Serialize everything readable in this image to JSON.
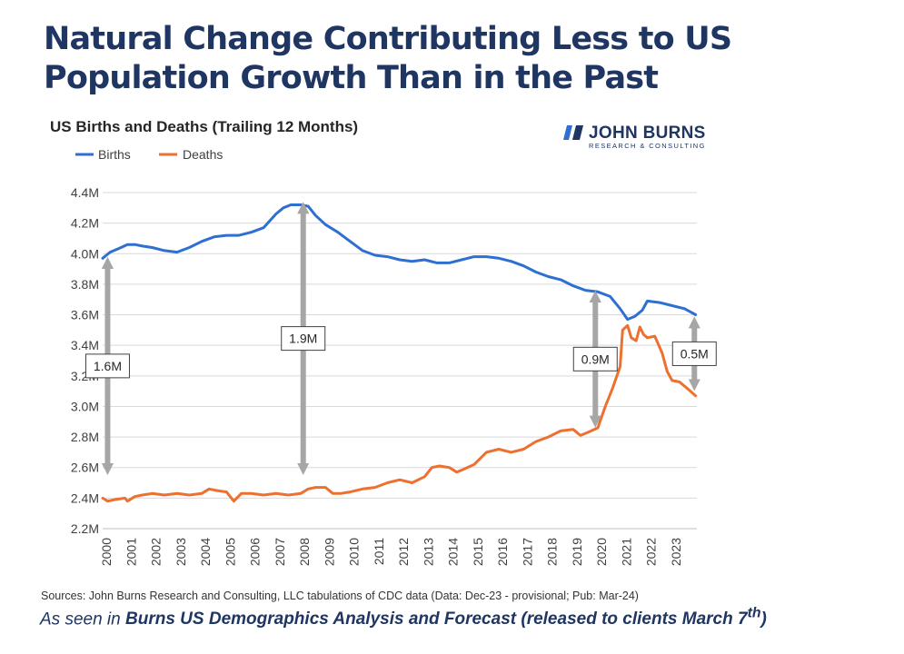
{
  "page": {
    "title_line1": "Natural Change Contributing Less to US",
    "title_line2": "Population Growth Than in the Past"
  },
  "logo": {
    "name": "JOHN BURNS",
    "subtitle": "RESEARCH & CONSULTING"
  },
  "footer": {
    "sources": "Sources: John Burns Research and Consulting, LLC tabulations of CDC data (Data: Dec-23 - provisional; Pub: Mar-24)",
    "seen_prefix": "As seen in ",
    "seen_bold": "Burns US Demographics Analysis and Forecast (released to clients March 7",
    "seen_sup": "th",
    "seen_suffix": ")"
  },
  "colors": {
    "title": "#1f3562",
    "births": "#2e6fd1",
    "deaths": "#ed7030",
    "arrow": "#a6a6a6",
    "grid": "#d9d9d9"
  },
  "chart_data": {
    "type": "line",
    "title": "US Births and Deaths (Trailing 12 Months)",
    "xlabel": "",
    "ylabel": "",
    "ylim": [
      2.2,
      4.4
    ],
    "yticks": [
      2.2,
      2.4,
      2.6,
      2.8,
      3.0,
      3.2,
      3.4,
      3.6,
      3.8,
      4.0,
      4.2,
      4.4
    ],
    "ytick_labels": [
      "2.2M",
      "2.4M",
      "2.6M",
      "2.8M",
      "3.0M",
      "3.2M",
      "3.4M",
      "3.6M",
      "3.8M",
      "4.0M",
      "4.2M",
      "4.4M"
    ],
    "xlim": [
      2000,
      2024
    ],
    "xticks": [
      "2000",
      "2001",
      "2002",
      "2003",
      "2004",
      "2005",
      "2006",
      "2007",
      "2008",
      "2009",
      "2010",
      "2011",
      "2012",
      "2013",
      "2014",
      "2015",
      "2016",
      "2017",
      "2018",
      "2019",
      "2020",
      "2021",
      "2022",
      "2023"
    ],
    "legend": {
      "position": "top-left"
    },
    "series": [
      {
        "name": "Births",
        "x": [
          2000.0,
          2000.3,
          2000.6,
          2001.0,
          2001.3,
          2001.6,
          2002.0,
          2002.5,
          2003.0,
          2003.5,
          2004.0,
          2004.5,
          2005.0,
          2005.5,
          2006.0,
          2006.5,
          2007.0,
          2007.3,
          2007.6,
          2008.0,
          2008.3,
          2008.6,
          2009.0,
          2009.5,
          2010.0,
          2010.5,
          2011.0,
          2011.5,
          2012.0,
          2012.5,
          2013.0,
          2013.5,
          2014.0,
          2014.5,
          2015.0,
          2015.5,
          2016.0,
          2016.5,
          2017.0,
          2017.5,
          2018.0,
          2018.5,
          2019.0,
          2019.5,
          2020.0,
          2020.5,
          2020.9,
          2021.2,
          2021.5,
          2021.8,
          2022.0,
          2022.5,
          2023.0,
          2023.5,
          2023.95
        ],
        "values": [
          3.97,
          4.01,
          4.03,
          4.06,
          4.06,
          4.05,
          4.04,
          4.02,
          4.01,
          4.04,
          4.08,
          4.11,
          4.12,
          4.12,
          4.14,
          4.17,
          4.26,
          4.3,
          4.32,
          4.32,
          4.31,
          4.25,
          4.19,
          4.14,
          4.08,
          4.02,
          3.99,
          3.98,
          3.96,
          3.95,
          3.96,
          3.94,
          3.94,
          3.96,
          3.98,
          3.98,
          3.97,
          3.95,
          3.92,
          3.88,
          3.85,
          3.83,
          3.79,
          3.76,
          3.75,
          3.72,
          3.64,
          3.57,
          3.59,
          3.63,
          3.69,
          3.68,
          3.66,
          3.64,
          3.6
        ]
      },
      {
        "name": "Deaths",
        "x": [
          2000.0,
          2000.2,
          2000.5,
          2000.9,
          2001.0,
          2001.3,
          2001.6,
          2002.0,
          2002.5,
          2003.0,
          2003.5,
          2004.0,
          2004.3,
          2004.6,
          2005.0,
          2005.3,
          2005.6,
          2006.0,
          2006.5,
          2007.0,
          2007.5,
          2008.0,
          2008.3,
          2008.6,
          2009.0,
          2009.3,
          2009.6,
          2010.0,
          2010.5,
          2011.0,
          2011.5,
          2012.0,
          2012.5,
          2013.0,
          2013.3,
          2013.6,
          2014.0,
          2014.3,
          2014.6,
          2015.0,
          2015.5,
          2016.0,
          2016.5,
          2017.0,
          2017.5,
          2018.0,
          2018.5,
          2019.0,
          2019.3,
          2019.6,
          2020.0,
          2020.3,
          2020.6,
          2020.9,
          2021.0,
          2021.2,
          2021.35,
          2021.55,
          2021.7,
          2021.85,
          2022.0,
          2022.3,
          2022.6,
          2022.8,
          2023.0,
          2023.3,
          2023.6,
          2023.95
        ],
        "values": [
          2.4,
          2.38,
          2.39,
          2.4,
          2.38,
          2.41,
          2.42,
          2.43,
          2.42,
          2.43,
          2.42,
          2.43,
          2.46,
          2.45,
          2.44,
          2.38,
          2.43,
          2.43,
          2.42,
          2.43,
          2.42,
          2.43,
          2.46,
          2.47,
          2.47,
          2.43,
          2.43,
          2.44,
          2.46,
          2.47,
          2.5,
          2.52,
          2.5,
          2.54,
          2.6,
          2.61,
          2.6,
          2.57,
          2.59,
          2.62,
          2.7,
          2.72,
          2.7,
          2.72,
          2.77,
          2.8,
          2.84,
          2.85,
          2.81,
          2.83,
          2.86,
          3.0,
          3.12,
          3.26,
          3.5,
          3.53,
          3.45,
          3.43,
          3.52,
          3.47,
          3.45,
          3.46,
          3.35,
          3.23,
          3.17,
          3.16,
          3.12,
          3.07
        ]
      }
    ],
    "annotations": [
      {
        "label": "1.6M",
        "x": 2000.2,
        "from": 2.59,
        "to": 3.94
      },
      {
        "label": "1.9M",
        "x": 2008.1,
        "from": 2.59,
        "to": 4.3
      },
      {
        "label": "0.9M",
        "x": 2019.9,
        "from": 2.9,
        "to": 3.72
      },
      {
        "label": "0.5M",
        "x": 2023.9,
        "from": 3.14,
        "to": 3.55
      }
    ]
  }
}
